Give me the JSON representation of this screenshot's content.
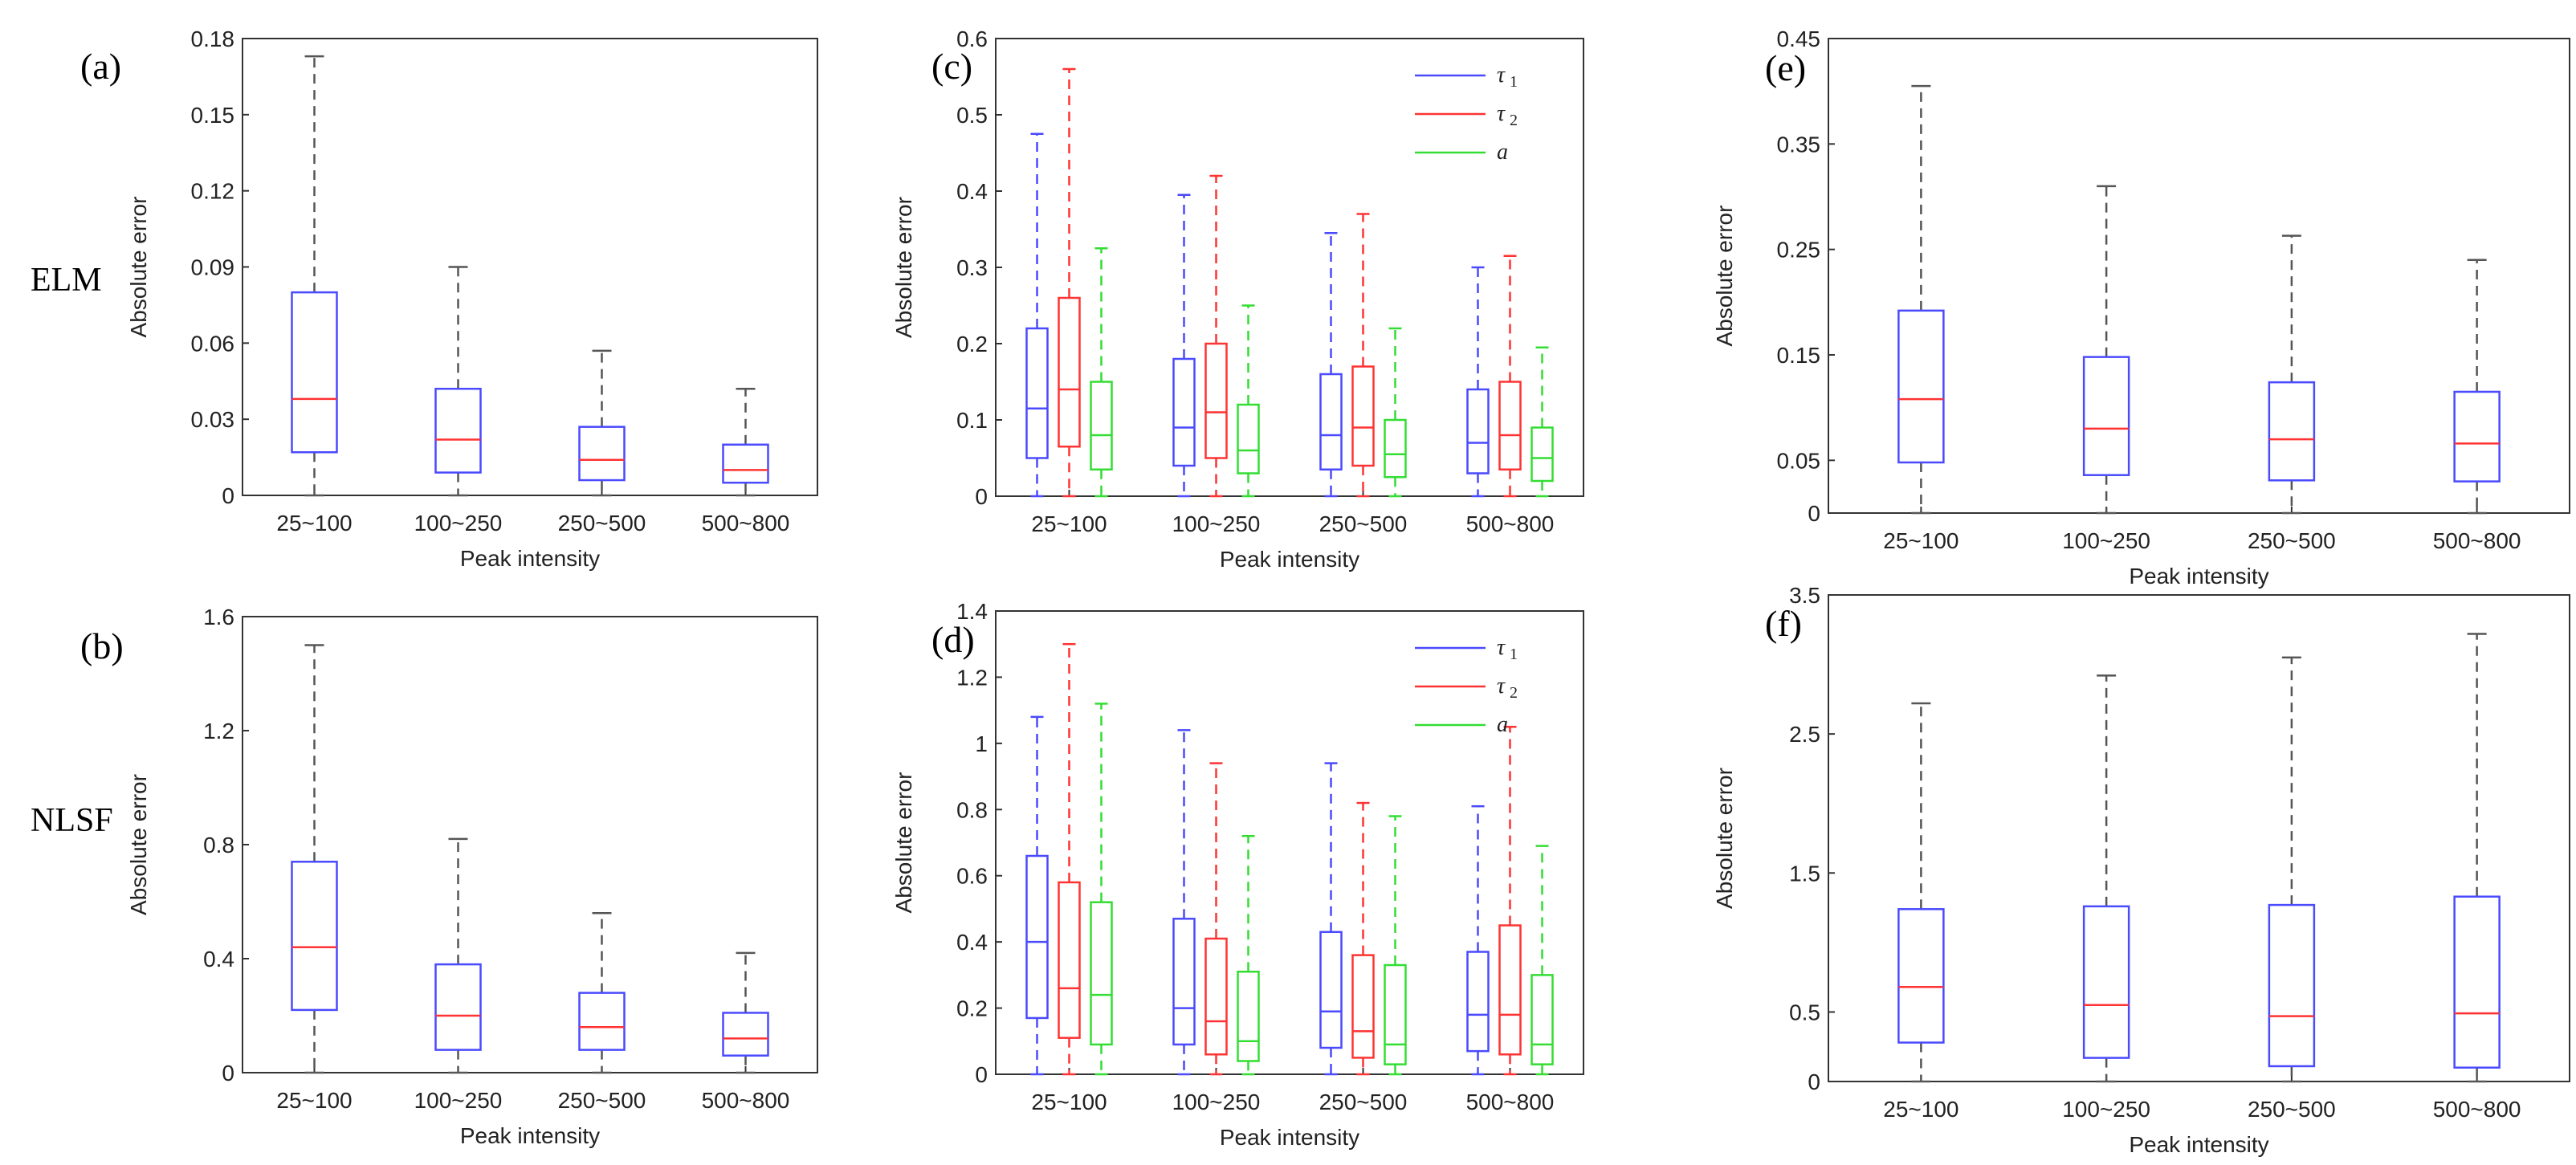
{
  "row_labels": [
    "ELM",
    "NLSF"
  ],
  "colors": {
    "tau1": "#4a4aff",
    "tau2": "#ff3333",
    "a": "#33dd33",
    "median_single": "#ff3333",
    "whisker": "#555555"
  },
  "chart_data": [
    {
      "panel": "(a)",
      "type": "box",
      "xlabel": "Peak intensity",
      "ylabel": "Absolute error",
      "categories": [
        "25~100",
        "100~250",
        "250~500",
        "500~800"
      ],
      "ylim": [
        0,
        0.18
      ],
      "yticks": [
        0,
        0.03,
        0.06,
        0.09,
        0.12,
        0.15,
        0.18
      ],
      "ytick_labels": [
        "0",
        "0.03",
        "0.06",
        "0.09",
        "0.12",
        "0.15",
        "0.18"
      ],
      "series": [
        {
          "boxes": [
            {
              "min": 0,
              "q1": 0.017,
              "median": 0.038,
              "q3": 0.08,
              "max": 0.173
            },
            {
              "min": 0,
              "q1": 0.009,
              "median": 0.022,
              "q3": 0.042,
              "max": 0.09
            },
            {
              "min": 0,
              "q1": 0.006,
              "median": 0.014,
              "q3": 0.027,
              "max": 0.057
            },
            {
              "min": 0,
              "q1": 0.005,
              "median": 0.01,
              "q3": 0.02,
              "max": 0.042
            }
          ]
        }
      ]
    },
    {
      "panel": "(b)",
      "type": "box",
      "xlabel": "Peak intensity",
      "ylabel": "Absolute error",
      "categories": [
        "25~100",
        "100~250",
        "250~500",
        "500~800"
      ],
      "ylim": [
        0,
        1.6
      ],
      "yticks": [
        0,
        0.4,
        0.8,
        1.2,
        1.6
      ],
      "ytick_labels": [
        "0",
        "0.4",
        "0.8",
        "1.2",
        "1.6"
      ],
      "series": [
        {
          "boxes": [
            {
              "min": 0,
              "q1": 0.22,
              "median": 0.44,
              "q3": 0.74,
              "max": 1.5
            },
            {
              "min": 0,
              "q1": 0.08,
              "median": 0.2,
              "q3": 0.38,
              "max": 0.82
            },
            {
              "min": 0,
              "q1": 0.08,
              "median": 0.16,
              "q3": 0.28,
              "max": 0.56
            },
            {
              "min": 0,
              "q1": 0.06,
              "median": 0.12,
              "q3": 0.21,
              "max": 0.42
            }
          ]
        }
      ]
    },
    {
      "panel": "(c)",
      "type": "box",
      "xlabel": "Peak intensity",
      "ylabel": "Absolute error",
      "categories": [
        "25~100",
        "100~250",
        "250~500",
        "500~800"
      ],
      "ylim": [
        0,
        0.6
      ],
      "yticks": [
        0,
        0.1,
        0.2,
        0.3,
        0.4,
        0.5,
        0.6
      ],
      "ytick_labels": [
        "0",
        "0.1",
        "0.2",
        "0.3",
        "0.4",
        "0.5",
        "0.6"
      ],
      "legend": [
        "τ",
        "τ",
        "a"
      ],
      "legend_sub": [
        "1",
        "2",
        ""
      ],
      "legend_position": "top-right",
      "series": [
        {
          "name": "τ1",
          "color": "#4a4aff",
          "boxes": [
            {
              "min": 0,
              "q1": 0.05,
              "median": 0.115,
              "q3": 0.22,
              "max": 0.475
            },
            {
              "min": 0,
              "q1": 0.04,
              "median": 0.09,
              "q3": 0.18,
              "max": 0.395
            },
            {
              "min": 0,
              "q1": 0.035,
              "median": 0.08,
              "q3": 0.16,
              "max": 0.345
            },
            {
              "min": 0,
              "q1": 0.03,
              "median": 0.07,
              "q3": 0.14,
              "max": 0.3
            }
          ]
        },
        {
          "name": "τ2",
          "color": "#ff3333",
          "boxes": [
            {
              "min": 0,
              "q1": 0.065,
              "median": 0.14,
              "q3": 0.26,
              "max": 0.56
            },
            {
              "min": 0,
              "q1": 0.05,
              "median": 0.11,
              "q3": 0.2,
              "max": 0.42
            },
            {
              "min": 0,
              "q1": 0.04,
              "median": 0.09,
              "q3": 0.17,
              "max": 0.37
            },
            {
              "min": 0,
              "q1": 0.035,
              "median": 0.08,
              "q3": 0.15,
              "max": 0.315
            }
          ]
        },
        {
          "name": "a",
          "color": "#33dd33",
          "boxes": [
            {
              "min": 0,
              "q1": 0.035,
              "median": 0.08,
              "q3": 0.15,
              "max": 0.325
            },
            {
              "min": 0,
              "q1": 0.03,
              "median": 0.06,
              "q3": 0.12,
              "max": 0.25
            },
            {
              "min": 0,
              "q1": 0.025,
              "median": 0.055,
              "q3": 0.1,
              "max": 0.22
            },
            {
              "min": 0,
              "q1": 0.02,
              "median": 0.05,
              "q3": 0.09,
              "max": 0.195
            }
          ]
        }
      ]
    },
    {
      "panel": "(d)",
      "type": "box",
      "xlabel": "Peak intensity",
      "ylabel": "Absolute error",
      "categories": [
        "25~100",
        "100~250",
        "250~500",
        "500~800"
      ],
      "ylim": [
        0,
        1.4
      ],
      "yticks": [
        0,
        0.2,
        0.4,
        0.6,
        0.8,
        1.0,
        1.2,
        1.4
      ],
      "ytick_labels": [
        "0",
        "0.2",
        "0.4",
        "0.6",
        "0.8",
        "1",
        "1.2",
        "1.4"
      ],
      "legend": [
        "τ",
        "τ",
        "a"
      ],
      "legend_sub": [
        "1",
        "2",
        ""
      ],
      "legend_position": "top-right",
      "series": [
        {
          "name": "τ1",
          "color": "#4a4aff",
          "boxes": [
            {
              "min": 0,
              "q1": 0.17,
              "median": 0.4,
              "q3": 0.66,
              "max": 1.08
            },
            {
              "min": 0,
              "q1": 0.09,
              "median": 0.2,
              "q3": 0.47,
              "max": 1.04
            },
            {
              "min": 0,
              "q1": 0.08,
              "median": 0.19,
              "q3": 0.43,
              "max": 0.94
            },
            {
              "min": 0,
              "q1": 0.07,
              "median": 0.18,
              "q3": 0.37,
              "max": 0.81
            }
          ]
        },
        {
          "name": "τ2",
          "color": "#ff3333",
          "boxes": [
            {
              "min": 0,
              "q1": 0.11,
              "median": 0.26,
              "q3": 0.58,
              "max": 1.3
            },
            {
              "min": 0,
              "q1": 0.06,
              "median": 0.16,
              "q3": 0.41,
              "max": 0.94
            },
            {
              "min": 0,
              "q1": 0.05,
              "median": 0.13,
              "q3": 0.36,
              "max": 0.82
            },
            {
              "min": 0,
              "q1": 0.06,
              "median": 0.18,
              "q3": 0.45,
              "max": 1.05
            }
          ]
        },
        {
          "name": "a",
          "color": "#33dd33",
          "boxes": [
            {
              "min": 0,
              "q1": 0.09,
              "median": 0.24,
              "q3": 0.52,
              "max": 1.12
            },
            {
              "min": 0,
              "q1": 0.04,
              "median": 0.1,
              "q3": 0.31,
              "max": 0.72
            },
            {
              "min": 0,
              "q1": 0.03,
              "median": 0.09,
              "q3": 0.33,
              "max": 0.78
            },
            {
              "min": 0,
              "q1": 0.03,
              "median": 0.09,
              "q3": 0.3,
              "max": 0.69
            }
          ]
        }
      ]
    },
    {
      "panel": "(e)",
      "type": "box",
      "xlabel": "Peak intensity",
      "ylabel": "Absolute error",
      "categories": [
        "25~100",
        "100~250",
        "250~500",
        "500~800"
      ],
      "ylim": [
        0,
        0.45
      ],
      "yticks": [
        0,
        0.05,
        0.15,
        0.25,
        0.35,
        0.45
      ],
      "ytick_labels": [
        "0",
        "0.05",
        "0.15",
        "0.25",
        "0.35",
        "0.45"
      ],
      "series": [
        {
          "boxes": [
            {
              "min": 0,
              "q1": 0.048,
              "median": 0.108,
              "q3": 0.192,
              "max": 0.405
            },
            {
              "min": 0,
              "q1": 0.036,
              "median": 0.08,
              "q3": 0.148,
              "max": 0.31
            },
            {
              "min": 0,
              "q1": 0.031,
              "median": 0.07,
              "q3": 0.124,
              "max": 0.263
            },
            {
              "min": 0,
              "q1": 0.03,
              "median": 0.066,
              "q3": 0.115,
              "max": 0.24
            }
          ]
        }
      ]
    },
    {
      "panel": "(f)",
      "type": "box",
      "xlabel": "Peak intensity",
      "ylabel": "Absolute error",
      "categories": [
        "25~100",
        "100~250",
        "250~500",
        "500~800"
      ],
      "ylim": [
        0,
        3.5
      ],
      "yticks": [
        0,
        0.5,
        1.5,
        2.5,
        3.5
      ],
      "ytick_labels": [
        "0",
        "0.5",
        "1.5",
        "2.5",
        "3.5"
      ],
      "series": [
        {
          "boxes": [
            {
              "min": 0,
              "q1": 0.28,
              "median": 0.68,
              "q3": 1.24,
              "max": 2.72
            },
            {
              "min": 0,
              "q1": 0.17,
              "median": 0.55,
              "q3": 1.26,
              "max": 2.92
            },
            {
              "min": 0,
              "q1": 0.11,
              "median": 0.47,
              "q3": 1.27,
              "max": 3.05
            },
            {
              "min": 0,
              "q1": 0.1,
              "median": 0.49,
              "q3": 1.33,
              "max": 3.22
            }
          ]
        }
      ]
    }
  ]
}
